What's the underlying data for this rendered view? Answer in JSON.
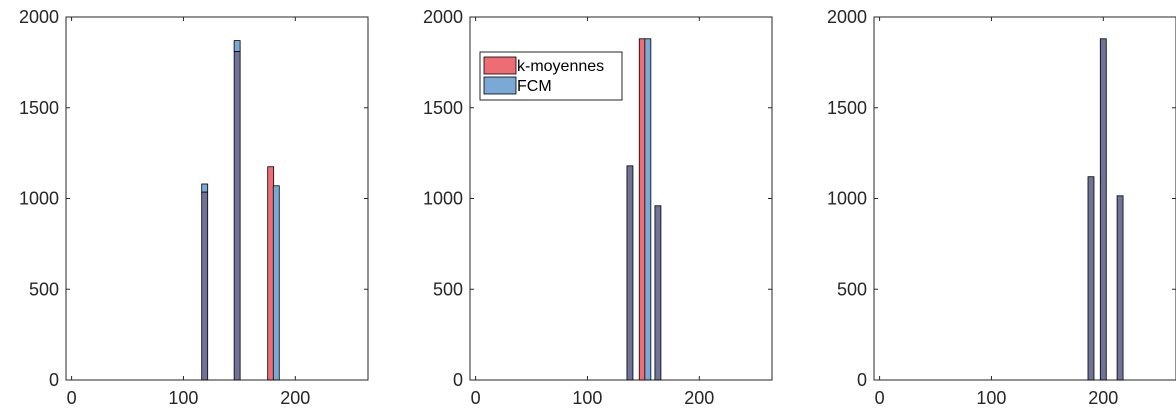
{
  "colors": {
    "kmeans": "#ee6d74",
    "fcm": "#79a9d4",
    "overlap": "#6e7397",
    "axis": "#262626",
    "edge": "#000000"
  },
  "chart_data": [
    {
      "type": "bar",
      "xlim": [
        -5,
        265
      ],
      "ylim": [
        0,
        2000
      ],
      "xticks": [
        0,
        100,
        200
      ],
      "yticks": [
        0,
        500,
        1000,
        1500,
        2000
      ],
      "grid": false,
      "series": [
        {
          "name": "k-moyennes",
          "x": [
            119,
            148,
            178
          ],
          "values": [
            1035,
            1810,
            1175
          ]
        },
        {
          "name": "FCM",
          "x": [
            119,
            148,
            183
          ],
          "values": [
            1080,
            1870,
            1070
          ]
        }
      ]
    },
    {
      "type": "bar",
      "xlim": [
        -5,
        265
      ],
      "ylim": [
        0,
        2000
      ],
      "xticks": [
        0,
        100,
        200
      ],
      "yticks": [
        0,
        500,
        1000,
        1500,
        2000
      ],
      "grid": false,
      "legend_position": "top-left",
      "series": [
        {
          "name": "k-moyennes",
          "x": [
            138,
            149,
            163
          ],
          "values": [
            1180,
            1880,
            960
          ]
        },
        {
          "name": "FCM",
          "x": [
            138,
            154,
            163
          ],
          "values": [
            1180,
            1880,
            960
          ]
        }
      ]
    },
    {
      "type": "bar",
      "xlim": [
        -5,
        265
      ],
      "ylim": [
        0,
        2000
      ],
      "xticks": [
        0,
        100,
        200
      ],
      "yticks": [
        0,
        500,
        1000,
        1500,
        2000
      ],
      "grid": false,
      "series": [
        {
          "name": "k-moyennes",
          "x": [
            189,
            200,
            215
          ],
          "values": [
            1120,
            1880,
            1015
          ]
        },
        {
          "name": "FCM",
          "x": [
            189,
            200,
            215
          ],
          "values": [
            1120,
            1880,
            1015
          ]
        }
      ]
    }
  ]
}
